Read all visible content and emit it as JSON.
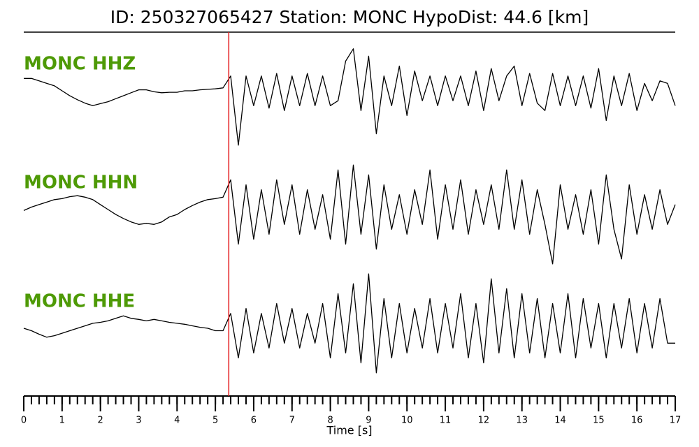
{
  "chart_data": {
    "type": "line",
    "title": "ID: 250327065427   Station: MONC   HypoDist:    44.6 [km]",
    "x_label": "Time [s]",
    "xlim": [
      0,
      17
    ],
    "xticks": [
      0,
      1,
      2,
      3,
      4,
      5,
      6,
      7,
      8,
      9,
      10,
      11,
      12,
      13,
      14,
      15,
      16,
      17
    ],
    "xminor_step": 0.2,
    "ylim": [
      -1.2,
      1.2
    ],
    "label_color": "#4e9a06",
    "markers": [
      {
        "x": 5.35,
        "color": "#e41a1c"
      }
    ],
    "x": [
      0,
      0.2,
      0.4,
      0.6,
      0.8,
      1,
      1.2,
      1.4,
      1.6,
      1.8,
      2,
      2.2,
      2.4,
      2.6,
      2.8,
      3,
      3.2,
      3.4,
      3.6,
      3.8,
      4,
      4.2,
      4.4,
      4.6,
      4.8,
      5,
      5.2,
      5.4,
      5.6,
      5.8,
      6,
      6.2,
      6.4,
      6.6,
      6.8,
      7,
      7.2,
      7.4,
      7.6,
      7.8,
      8,
      8.2,
      8.4,
      8.6,
      8.8,
      9,
      9.2,
      9.4,
      9.6,
      9.8,
      10,
      10.2,
      10.4,
      10.6,
      10.8,
      11,
      11.2,
      11.4,
      11.6,
      11.8,
      12,
      12.2,
      12.4,
      12.6,
      12.8,
      13,
      13.2,
      13.4,
      13.6,
      13.8,
      14,
      14.2,
      14.4,
      14.6,
      14.8,
      15,
      15.2,
      15.4,
      15.6,
      15.8,
      16,
      16.2,
      16.4,
      16.6,
      16.8,
      17
    ],
    "series": [
      {
        "name": "MONC HHZ",
        "color": "#000000",
        "values": [
          0.25,
          0.25,
          0.2,
          0.15,
          0.1,
          0,
          -0.1,
          -0.18,
          -0.25,
          -0.3,
          -0.26,
          -0.22,
          -0.16,
          -0.1,
          -0.04,
          0.02,
          0.02,
          -0.02,
          -0.04,
          -0.03,
          -0.03,
          0,
          0,
          0.02,
          0.03,
          0.04,
          0.06,
          0.3,
          -1.1,
          0.3,
          -0.3,
          0.3,
          -0.35,
          0.35,
          -0.4,
          0.3,
          -0.3,
          0.35,
          -0.3,
          0.3,
          -0.3,
          -0.2,
          0.6,
          0.85,
          -0.4,
          0.7,
          -0.87,
          0.3,
          -0.3,
          0.5,
          -0.5,
          0.4,
          -0.2,
          0.3,
          -0.3,
          0.3,
          -0.2,
          0.3,
          -0.3,
          0.4,
          -0.4,
          0.45,
          -0.2,
          0.3,
          0.5,
          -0.3,
          0.35,
          -0.25,
          -0.4,
          0.35,
          -0.3,
          0.3,
          -0.3,
          0.3,
          -0.35,
          0.45,
          -0.6,
          0.3,
          -0.3,
          0.35,
          -0.4,
          0.15,
          -0.2,
          0.2,
          0.15,
          -0.3
        ]
      },
      {
        "name": "MONC HHN",
        "color": "#000000",
        "values": [
          -0.02,
          0.05,
          0.1,
          0.15,
          0.2,
          0.22,
          0.26,
          0.28,
          0.25,
          0.2,
          0.1,
          0,
          -0.1,
          -0.18,
          -0.25,
          -0.3,
          -0.28,
          -0.3,
          -0.25,
          -0.15,
          -0.1,
          0,
          0.08,
          0.15,
          0.2,
          0.22,
          0.25,
          0.6,
          -0.7,
          0.5,
          -0.6,
          0.4,
          -0.5,
          0.6,
          -0.3,
          0.5,
          -0.5,
          0.4,
          -0.4,
          0.3,
          -0.6,
          0.8,
          -0.7,
          0.9,
          -0.5,
          0.7,
          -0.8,
          0.5,
          -0.4,
          0.3,
          -0.5,
          0.4,
          -0.3,
          0.8,
          -0.6,
          0.5,
          -0.4,
          0.6,
          -0.5,
          0.4,
          -0.3,
          0.5,
          -0.4,
          0.8,
          -0.4,
          0.6,
          -0.5,
          0.4,
          -0.3,
          -1.1,
          0.5,
          -0.4,
          0.3,
          -0.5,
          0.4,
          -0.7,
          0.7,
          -0.4,
          -1.0,
          0.5,
          -0.5,
          0.3,
          -0.4,
          0.4,
          -0.3,
          0.1
        ]
      },
      {
        "name": "MONC HHE",
        "color": "#000000",
        "values": [
          0,
          -0.05,
          -0.12,
          -0.18,
          -0.15,
          -0.1,
          -0.05,
          0,
          0.05,
          0.1,
          0.12,
          0.15,
          0.2,
          0.25,
          0.2,
          0.18,
          0.15,
          0.18,
          0.15,
          0.12,
          0.1,
          0.08,
          0.05,
          0.02,
          0,
          -0.05,
          -0.05,
          0.3,
          -0.6,
          0.4,
          -0.5,
          0.3,
          -0.4,
          0.5,
          -0.3,
          0.4,
          -0.4,
          0.3,
          -0.3,
          0.5,
          -0.6,
          0.7,
          -0.5,
          0.9,
          -0.7,
          1.1,
          -0.9,
          0.6,
          -0.6,
          0.5,
          -0.5,
          0.4,
          -0.4,
          0.6,
          -0.5,
          0.5,
          -0.4,
          0.7,
          -0.6,
          0.5,
          -0.7,
          1.0,
          -0.5,
          0.8,
          -0.6,
          0.7,
          -0.5,
          0.6,
          -0.6,
          0.5,
          -0.5,
          0.7,
          -0.6,
          0.6,
          -0.4,
          0.5,
          -0.6,
          0.5,
          -0.4,
          0.6,
          -0.5,
          0.5,
          -0.4,
          0.6,
          -0.3,
          -0.3
        ]
      }
    ]
  }
}
